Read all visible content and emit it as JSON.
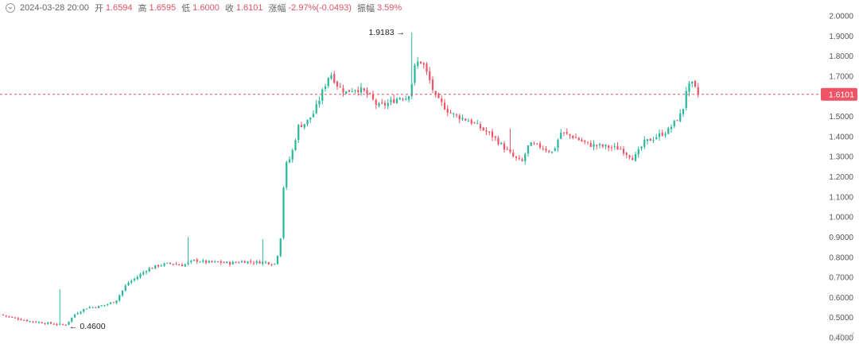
{
  "header": {
    "datetime": "2024-03-28 20:00",
    "open_label": "开",
    "open": "1.6594",
    "high_label": "高",
    "high": "1.6595",
    "low_label": "低",
    "low": "1.6000",
    "close_label": "收",
    "close": "1.6101",
    "change_label": "涨幅",
    "change": "-2.97%(-0.0493)",
    "amplitude_label": "振幅",
    "amplitude": "3.59%"
  },
  "colors": {
    "up": "#26b89a",
    "down": "#ef5466",
    "axis_text": "#555555",
    "header_text": "#666666",
    "current_line": "#ef5466"
  },
  "chart_data": {
    "type": "candlestick",
    "ylim": [
      0.4,
      2.0
    ],
    "y_ticks": [
      "2.0000",
      "1.9000",
      "1.8000",
      "1.7000",
      "1.6000",
      "1.5000",
      "1.4000",
      "1.3000",
      "1.2000",
      "1.1000",
      "1.0000",
      "0.9000",
      "0.8000",
      "0.7000",
      "0.6000",
      "0.5000",
      "0.4000"
    ],
    "current_price": "1.6101",
    "max_label": "1.9183",
    "min_label": "0.4600",
    "max_value": 1.9183,
    "min_value": 0.46,
    "waypoints": [
      [
        0,
        0.515
      ],
      [
        15,
        0.5
      ],
      [
        40,
        0.48
      ],
      [
        82,
        0.462
      ],
      [
        95,
        0.52
      ],
      [
        110,
        0.55
      ],
      [
        125,
        0.555
      ],
      [
        145,
        0.58
      ],
      [
        160,
        0.67
      ],
      [
        172,
        0.7
      ],
      [
        185,
        0.74
      ],
      [
        200,
        0.76
      ],
      [
        215,
        0.77
      ],
      [
        230,
        0.76
      ],
      [
        245,
        0.785
      ],
      [
        260,
        0.775
      ],
      [
        275,
        0.775
      ],
      [
        290,
        0.77
      ],
      [
        305,
        0.78
      ],
      [
        320,
        0.775
      ],
      [
        335,
        0.775
      ],
      [
        345,
        0.765
      ],
      [
        352,
        0.85
      ],
      [
        358,
        1.25
      ],
      [
        366,
        1.3
      ],
      [
        375,
        1.45
      ],
      [
        385,
        1.47
      ],
      [
        395,
        1.52
      ],
      [
        405,
        1.62
      ],
      [
        415,
        1.72
      ],
      [
        425,
        1.65
      ],
      [
        435,
        1.62
      ],
      [
        445,
        1.64
      ],
      [
        455,
        1.63
      ],
      [
        465,
        1.6
      ],
      [
        475,
        1.55
      ],
      [
        485,
        1.56
      ],
      [
        495,
        1.58
      ],
      [
        505,
        1.6
      ],
      [
        512,
        1.59
      ],
      [
        517,
        1.65
      ],
      [
        521,
        1.74
      ],
      [
        527,
        1.78
      ],
      [
        532,
        1.76
      ],
      [
        540,
        1.68
      ],
      [
        548,
        1.59
      ],
      [
        556,
        1.56
      ],
      [
        565,
        1.52
      ],
      [
        575,
        1.5
      ],
      [
        590,
        1.48
      ],
      [
        605,
        1.44
      ],
      [
        620,
        1.4
      ],
      [
        635,
        1.34
      ],
      [
        645,
        1.3
      ],
      [
        656,
        1.27
      ],
      [
        665,
        1.36
      ],
      [
        680,
        1.35
      ],
      [
        695,
        1.32
      ],
      [
        705,
        1.42
      ],
      [
        720,
        1.4
      ],
      [
        740,
        1.36
      ],
      [
        760,
        1.35
      ],
      [
        780,
        1.34
      ],
      [
        797,
        1.29
      ],
      [
        810,
        1.37
      ],
      [
        825,
        1.4
      ],
      [
        840,
        1.43
      ],
      [
        850,
        1.48
      ],
      [
        858,
        1.52
      ],
      [
        863,
        1.64
      ],
      [
        870,
        1.66
      ],
      [
        878,
        1.61
      ]
    ]
  }
}
